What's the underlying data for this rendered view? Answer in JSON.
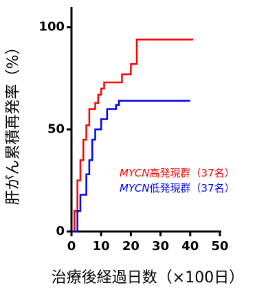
{
  "chart_data": {
    "type": "step",
    "xlabel": "治療後経過日数（×100日）",
    "ylabel": "肝がん累積再発率（%）",
    "xlim": [
      0,
      50
    ],
    "xticks": [
      0,
      10,
      20,
      30,
      40,
      50
    ],
    "ylim": [
      0,
      110
    ],
    "yticks": [
      0,
      50,
      100
    ],
    "series": [
      {
        "name": "MYCN高発現群（37名）",
        "color": "#ff0000",
        "x": [
          0,
          1,
          2,
          3,
          4,
          5,
          6,
          8,
          9,
          10,
          11,
          17,
          20,
          22,
          41
        ],
        "values": [
          0,
          10,
          25,
          35,
          45,
          52,
          60,
          63,
          67,
          70,
          73,
          77,
          82,
          94,
          94
        ]
      },
      {
        "name": "MYCN低発現群（37名）",
        "color": "#0000ff",
        "x": [
          0,
          2,
          3,
          5,
          6,
          7,
          8,
          10,
          12,
          15,
          16,
          40
        ],
        "values": [
          0,
          10,
          18,
          28,
          35,
          45,
          50,
          55,
          60,
          62,
          64,
          64
        ]
      }
    ]
  }
}
